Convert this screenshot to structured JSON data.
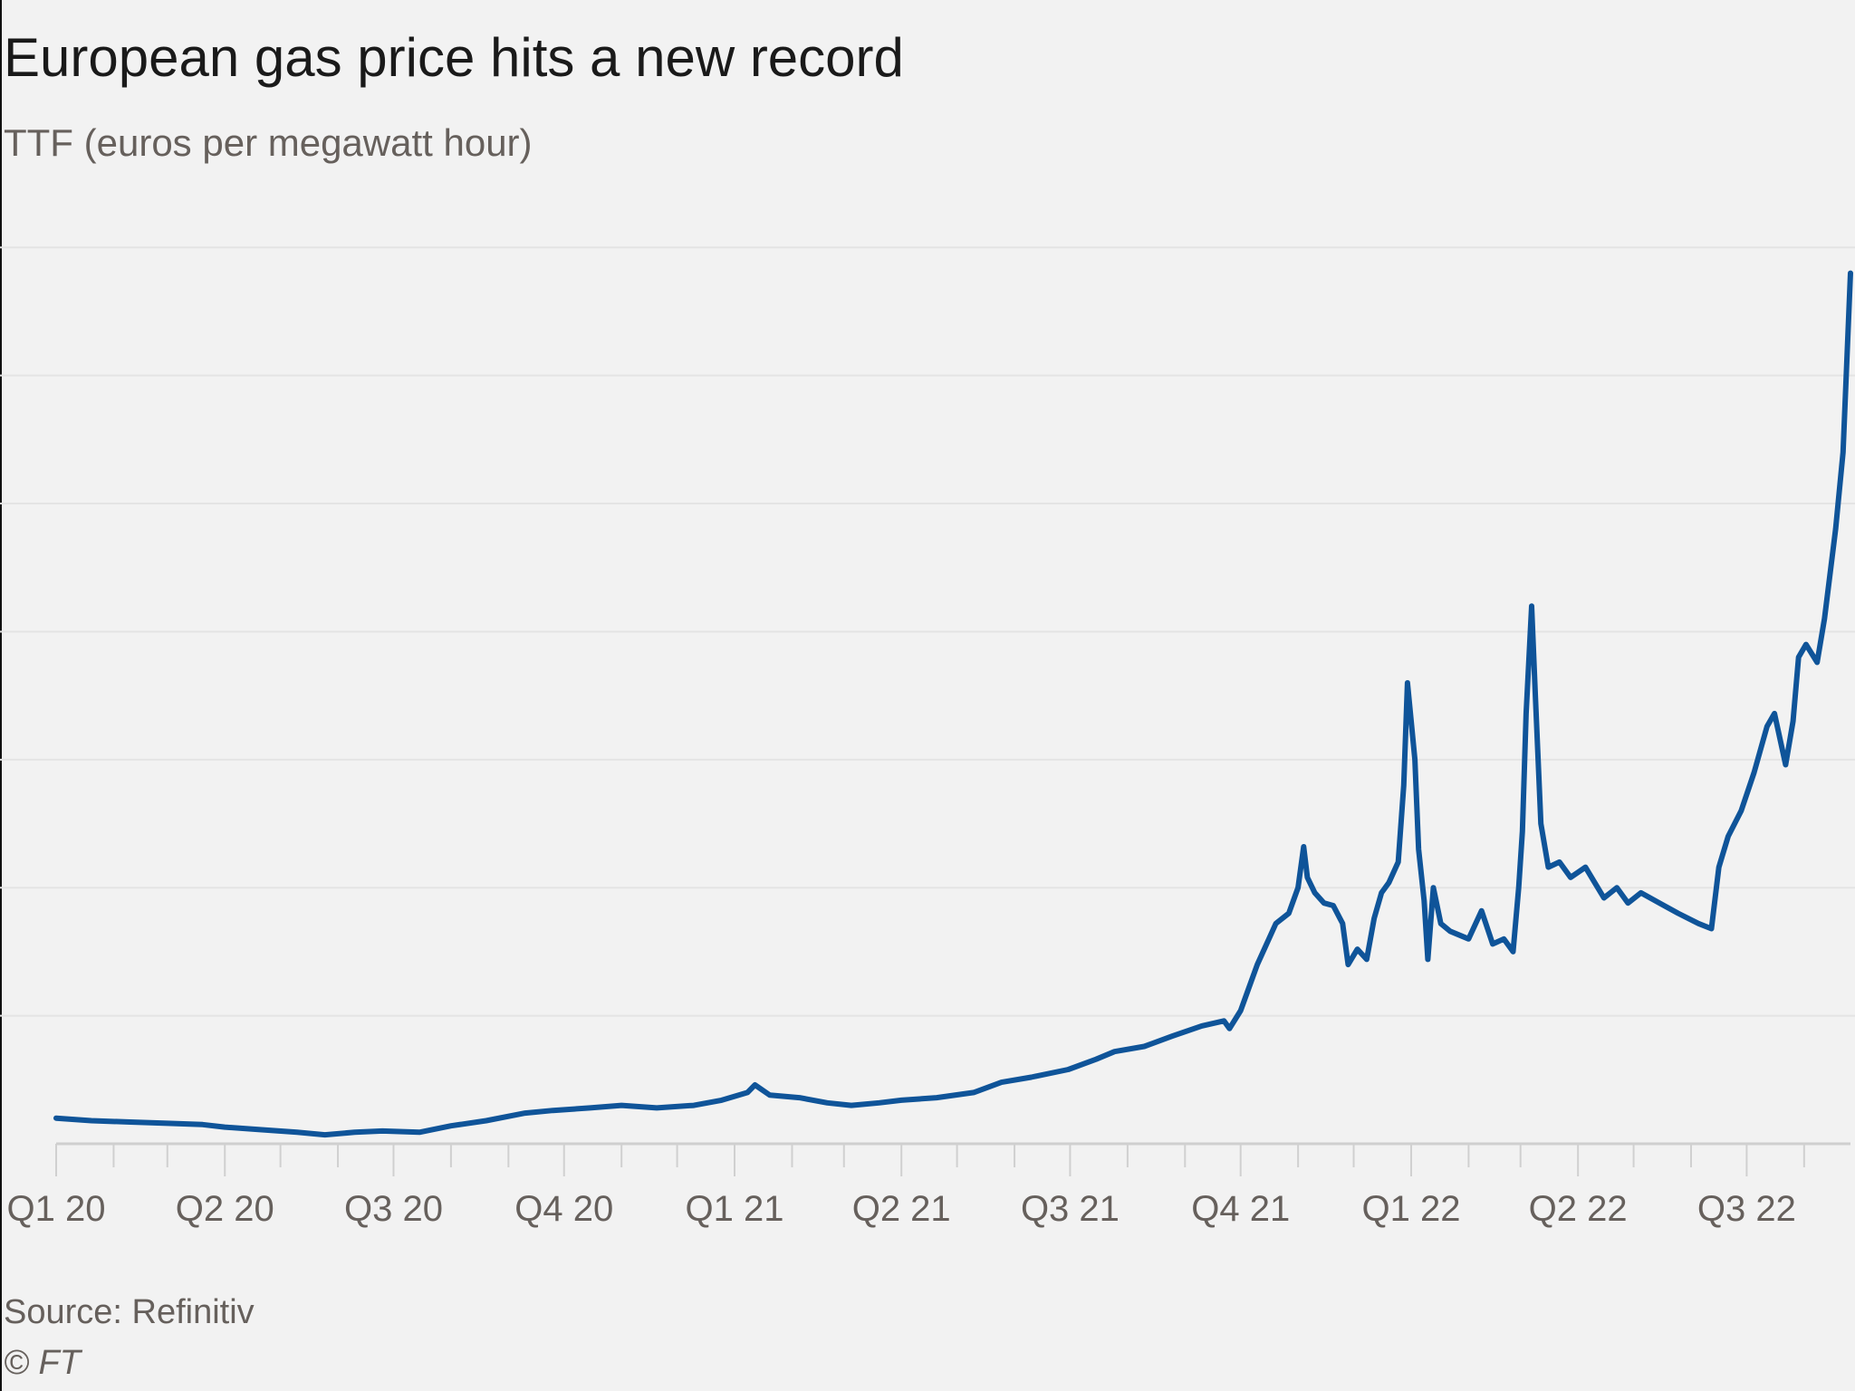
{
  "chart_data": {
    "type": "line",
    "title": "European gas price hits a new record",
    "subtitle": "TTF (euros per megawatt hour)",
    "xlabel": "",
    "ylabel": "",
    "grid": true,
    "legend": "none",
    "line_color": "#0f5499",
    "x_range": [
      "2020-01-01",
      "2022-08-26"
    ],
    "y_range": [
      0,
      360
    ],
    "y_gridlines": [
      50,
      100,
      150,
      200,
      250,
      300,
      350
    ],
    "ticks": [
      {
        "label": "Q1 20",
        "date": "2020-01-01"
      },
      {
        "label": "Q2 20",
        "date": "2020-04-01"
      },
      {
        "label": "Q3 20",
        "date": "2020-07-01"
      },
      {
        "label": "Q4 20",
        "date": "2020-10-01"
      },
      {
        "label": "Q1 21",
        "date": "2021-01-01"
      },
      {
        "label": "Q2 21",
        "date": "2021-04-01"
      },
      {
        "label": "Q3 21",
        "date": "2021-07-01"
      },
      {
        "label": "Q4 21",
        "date": "2021-10-01"
      },
      {
        "label": "Q1 22",
        "date": "2022-01-01"
      },
      {
        "label": "Q2 22",
        "date": "2022-04-01"
      },
      {
        "label": "Q3 22",
        "date": "2022-07-01"
      }
    ],
    "series": [
      {
        "points": [
          [
            "2020-01-01",
            10
          ],
          [
            "2020-01-20",
            9
          ],
          [
            "2020-02-10",
            8.5
          ],
          [
            "2020-03-01",
            8
          ],
          [
            "2020-03-20",
            7.5
          ],
          [
            "2020-04-01",
            6.5
          ],
          [
            "2020-04-20",
            5.5
          ],
          [
            "2020-05-10",
            4.5
          ],
          [
            "2020-05-25",
            3.5
          ],
          [
            "2020-06-10",
            4.5
          ],
          [
            "2020-06-25",
            5
          ],
          [
            "2020-07-15",
            4.5
          ],
          [
            "2020-08-01",
            7
          ],
          [
            "2020-08-20",
            9
          ],
          [
            "2020-09-10",
            12
          ],
          [
            "2020-09-25",
            13
          ],
          [
            "2020-10-15",
            14
          ],
          [
            "2020-11-01",
            15
          ],
          [
            "2020-11-20",
            14
          ],
          [
            "2020-12-10",
            15
          ],
          [
            "2020-12-25",
            17
          ],
          [
            "2021-01-08",
            20
          ],
          [
            "2021-01-12",
            23
          ],
          [
            "2021-01-20",
            19
          ],
          [
            "2021-02-05",
            18
          ],
          [
            "2021-02-20",
            16
          ],
          [
            "2021-03-05",
            15
          ],
          [
            "2021-03-20",
            16
          ],
          [
            "2021-04-01",
            17
          ],
          [
            "2021-04-20",
            18
          ],
          [
            "2021-05-10",
            20
          ],
          [
            "2021-05-25",
            24
          ],
          [
            "2021-06-10",
            26
          ],
          [
            "2021-06-30",
            29
          ],
          [
            "2021-07-15",
            33
          ],
          [
            "2021-07-25",
            36
          ],
          [
            "2021-08-10",
            38
          ],
          [
            "2021-08-25",
            42
          ],
          [
            "2021-09-10",
            46
          ],
          [
            "2021-09-22",
            48
          ],
          [
            "2021-09-25",
            45
          ],
          [
            "2021-10-01",
            52
          ],
          [
            "2021-10-05",
            60
          ],
          [
            "2021-10-10",
            70
          ],
          [
            "2021-10-15",
            78
          ],
          [
            "2021-10-20",
            86
          ],
          [
            "2021-10-27",
            90
          ],
          [
            "2021-11-01",
            100
          ],
          [
            "2021-11-04",
            116
          ],
          [
            "2021-11-06",
            104
          ],
          [
            "2021-11-10",
            98
          ],
          [
            "2021-11-15",
            94
          ],
          [
            "2021-11-20",
            93
          ],
          [
            "2021-11-25",
            86
          ],
          [
            "2021-11-28",
            70
          ],
          [
            "2021-12-03",
            76
          ],
          [
            "2021-12-08",
            72
          ],
          [
            "2021-12-12",
            88
          ],
          [
            "2021-12-16",
            98
          ],
          [
            "2021-12-20",
            102
          ],
          [
            "2021-12-25",
            110
          ],
          [
            "2021-12-28",
            140
          ],
          [
            "2021-12-30",
            180
          ],
          [
            "2022-01-03",
            150
          ],
          [
            "2022-01-05",
            115
          ],
          [
            "2022-01-08",
            95
          ],
          [
            "2022-01-10",
            72
          ],
          [
            "2022-01-13",
            100
          ],
          [
            "2022-01-17",
            86
          ],
          [
            "2022-01-22",
            83
          ],
          [
            "2022-02-01",
            80
          ],
          [
            "2022-02-08",
            91
          ],
          [
            "2022-02-14",
            78
          ],
          [
            "2022-02-20",
            80
          ],
          [
            "2022-02-25",
            75
          ],
          [
            "2022-02-28",
            100
          ],
          [
            "2022-03-02",
            122
          ],
          [
            "2022-03-04",
            168
          ],
          [
            "2022-03-07",
            210
          ],
          [
            "2022-03-09",
            175
          ],
          [
            "2022-03-12",
            125
          ],
          [
            "2022-03-16",
            108
          ],
          [
            "2022-03-22",
            110
          ],
          [
            "2022-03-28",
            104
          ],
          [
            "2022-04-05",
            108
          ],
          [
            "2022-04-10",
            102
          ],
          [
            "2022-04-15",
            96
          ],
          [
            "2022-04-22",
            100
          ],
          [
            "2022-04-28",
            94
          ],
          [
            "2022-05-05",
            98
          ],
          [
            "2022-05-15",
            94
          ],
          [
            "2022-05-25",
            90
          ],
          [
            "2022-06-05",
            86
          ],
          [
            "2022-06-12",
            84
          ],
          [
            "2022-06-16",
            108
          ],
          [
            "2022-06-21",
            120
          ],
          [
            "2022-06-28",
            130
          ],
          [
            "2022-07-05",
            145
          ],
          [
            "2022-07-12",
            163
          ],
          [
            "2022-07-16",
            168
          ],
          [
            "2022-07-22",
            148
          ],
          [
            "2022-07-26",
            165
          ],
          [
            "2022-07-29",
            190
          ],
          [
            "2022-08-02",
            195
          ],
          [
            "2022-08-08",
            188
          ],
          [
            "2022-08-12",
            205
          ],
          [
            "2022-08-18",
            240
          ],
          [
            "2022-08-22",
            270
          ],
          [
            "2022-08-26",
            340
          ]
        ]
      }
    ],
    "source": "Source: Refinitiv",
    "copyright": "© FT"
  }
}
